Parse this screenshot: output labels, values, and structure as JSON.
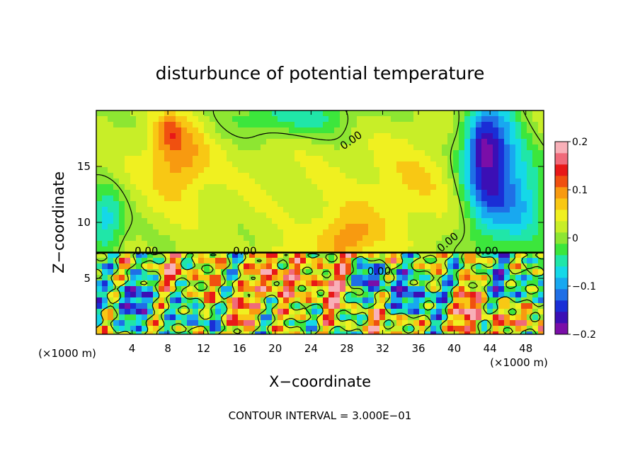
{
  "chart_data": {
    "type": "heatmap",
    "title": "disturbunce of potential temperature",
    "xlabel": "X−coordinate",
    "ylabel": "Z−coordinate",
    "x_unit_label": "(×1000 m)",
    "z_unit_label": "(×1000 m)",
    "footer": "CONTOUR INTERVAL = 3.000E−01",
    "xlim": [
      0,
      50
    ],
    "ylim": [
      0,
      20
    ],
    "x_ticks": [
      4,
      8,
      12,
      16,
      20,
      24,
      28,
      32,
      36,
      40,
      44,
      48
    ],
    "y_ticks": [
      5,
      10,
      15
    ],
    "colorbar": {
      "vmin": -0.2,
      "vmax": 0.2,
      "tick_values": [
        0.2,
        0.1,
        0,
        -0.1,
        -0.2
      ],
      "tick_labels": [
        "0.2",
        "0.1",
        "0",
        "−0.1",
        "−0.2"
      ],
      "colors": [
        "#7a0ea8",
        "#3b0fb5",
        "#1a2ed6",
        "#1f6fe6",
        "#18a8f0",
        "#15d8e8",
        "#20e6a8",
        "#3ce63c",
        "#8de632",
        "#c8ee28",
        "#f0f020",
        "#f8c814",
        "#f89a10",
        "#f05010",
        "#e81818",
        "#f06a7a",
        "#f8b0b8"
      ]
    },
    "contour_labels": [
      "0.00",
      "0.00",
      "0.00",
      "0.00",
      "0.00",
      "0.00"
    ],
    "field_blobs": [
      {
        "x": 25,
        "z": 14,
        "sx": 40,
        "sz": 10,
        "v": 0.03
      },
      {
        "x": 9,
        "z": 16,
        "sx": 3.2,
        "sz": 3.8,
        "v": 0.08
      },
      {
        "x": 8,
        "z": 18,
        "sx": 1.3,
        "sz": 1.3,
        "v": 0.05
      },
      {
        "x": 28,
        "z": 8.5,
        "sx": 3.5,
        "sz": 2.5,
        "v": 0.08
      },
      {
        "x": 35,
        "z": 13,
        "sx": 5,
        "sz": 4,
        "v": 0.03
      },
      {
        "x": 44,
        "z": 15,
        "sx": 3,
        "sz": 6,
        "v": -0.19
      },
      {
        "x": 43,
        "z": 17,
        "sx": 1.5,
        "sz": 2,
        "v": -0.06
      },
      {
        "x": 1,
        "z": 10,
        "sx": 2,
        "sz": 3,
        "v": -0.09
      },
      {
        "x": 22,
        "z": 19.5,
        "sx": 7,
        "sz": 2,
        "v": -0.07
      },
      {
        "x": 48,
        "z": 12,
        "sx": 2.5,
        "sz": 4,
        "v": -0.08
      },
      {
        "x": 4,
        "z": 3,
        "sx": 3,
        "sz": 2,
        "v": -0.12
      },
      {
        "x": 15,
        "z": 2,
        "sx": 3,
        "sz": 1.8,
        "v": 0.1
      },
      {
        "x": 20,
        "z": 5,
        "sx": 2,
        "sz": 2,
        "v": 0.14
      },
      {
        "x": 26,
        "z": 4,
        "sx": 2.5,
        "sz": 2,
        "v": 0.12
      },
      {
        "x": 31,
        "z": 5,
        "sx": 2.5,
        "sz": 1.5,
        "v": -0.15
      },
      {
        "x": 36,
        "z": 3,
        "sx": 3,
        "sz": 2,
        "v": -0.13
      },
      {
        "x": 42,
        "z": 2,
        "sx": 3,
        "sz": 2,
        "v": 0.13
      },
      {
        "x": 46,
        "z": 4,
        "sx": 2,
        "sz": 2,
        "v": -0.12
      },
      {
        "x": 9,
        "z": 5.5,
        "sx": 2,
        "sz": 1.2,
        "v": 0.11
      },
      {
        "x": 12,
        "z": 1.5,
        "sx": 2,
        "sz": 1.2,
        "v": -0.14
      },
      {
        "x": 33,
        "z": 1,
        "sx": 3,
        "sz": 1.2,
        "v": 0.1
      },
      {
        "x": 48,
        "z": 1.5,
        "sx": 2,
        "sz": 1.5,
        "v": 0.12
      }
    ]
  }
}
